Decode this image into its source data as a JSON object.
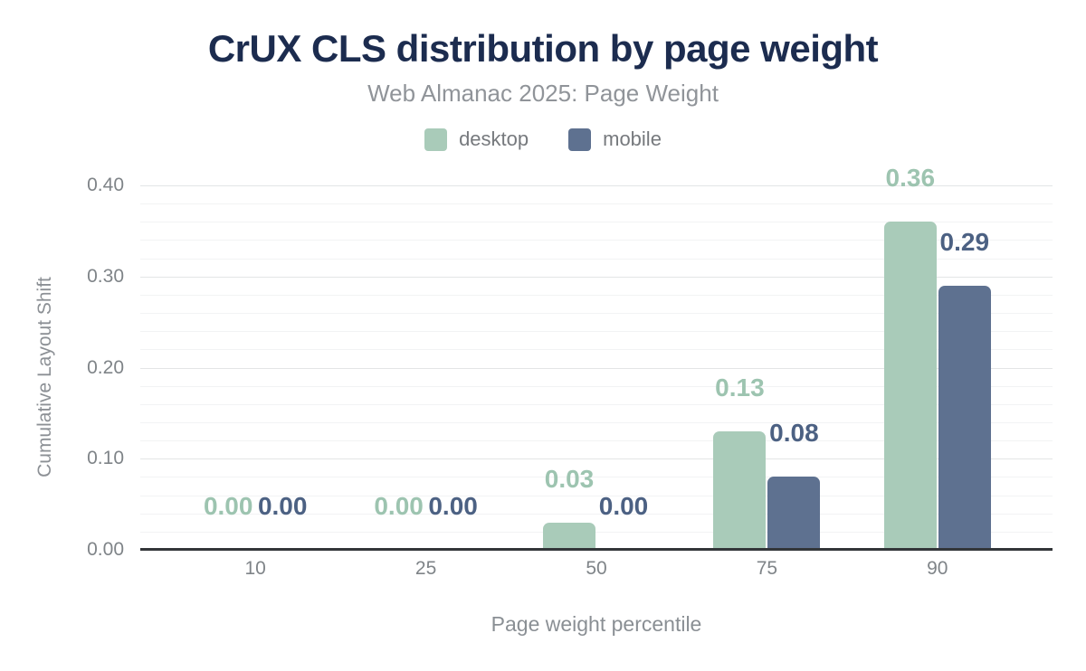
{
  "chart_data": {
    "type": "bar",
    "title": "CrUX CLS distribution by page weight",
    "subtitle": "Web Almanac 2025: Page Weight",
    "categories": [
      "10",
      "25",
      "50",
      "75",
      "90"
    ],
    "series": [
      {
        "name": "desktop",
        "values": [
          0,
          0,
          0.03,
          0.13,
          0.36
        ],
        "labels": [
          "0.00",
          "0.00",
          "0.03",
          "0.13",
          "0.36"
        ],
        "color": "#a9cbb9",
        "label_color": "#9dc4b0"
      },
      {
        "name": "mobile",
        "values": [
          0,
          0,
          0,
          0.08,
          0.29
        ],
        "labels": [
          "0.00",
          "0.00",
          "0.00",
          "0.08",
          "0.29"
        ],
        "color": "#5e7190",
        "label_color": "#4c6183"
      }
    ],
    "xlabel": "Page weight percentile",
    "ylabel": "Cumulative Layout Shift",
    "ylim": [
      0,
      0.4
    ],
    "yticks": [
      0,
      0.1,
      0.2,
      0.3,
      0.4
    ],
    "ytick_labels": [
      "0.00",
      "0.10",
      "0.20",
      "0.30",
      "0.40"
    ],
    "grid": "horizontal, major every 0.10 with minor every 0.02",
    "legend_position": "top center",
    "axis_line_color": "#333639",
    "title_color": "#1c2c4f",
    "subtitle_color": "#909499",
    "tick_color": "#7f8488"
  }
}
